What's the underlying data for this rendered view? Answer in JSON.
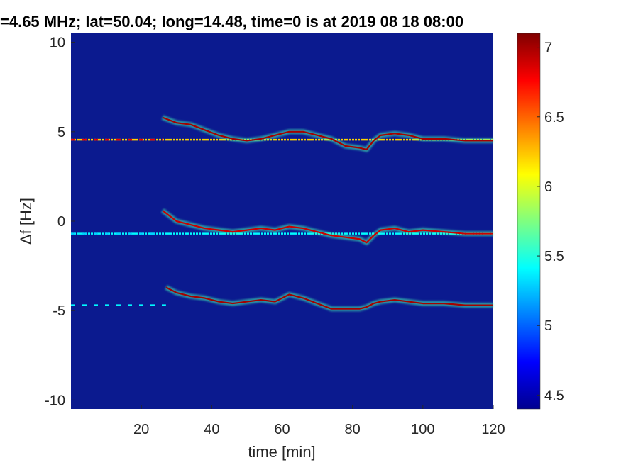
{
  "chart_data": {
    "type": "heatmap",
    "title": "=4.65 MHz;  lat=50.04; long=14.48, time=0 is at 2019 08 18 08:00",
    "xlabel": "time [min]",
    "ylabel": "Δf [Hz]",
    "xlim": [
      0,
      120
    ],
    "ylim": [
      -10.5,
      10.5
    ],
    "x_ticks": [
      20,
      40,
      60,
      80,
      100,
      120
    ],
    "x_tick_labels": [
      "20",
      "40",
      "60",
      "80",
      "100",
      "120"
    ],
    "y_ticks": [
      10,
      5,
      0,
      -5,
      -10
    ],
    "y_tick_labels": [
      "10",
      "5",
      "0",
      "-5",
      "-10"
    ],
    "colorbar": {
      "limits": [
        4.4,
        7.1
      ],
      "ticks": [
        7,
        6.5,
        6,
        5.5,
        5,
        4.5
      ],
      "tick_labels": [
        "7",
        "6.5",
        "6",
        "5.5",
        "5",
        "4.5"
      ],
      "colormap": "jet"
    },
    "background_color": "#0b1a8f",
    "series": [
      {
        "constant_line": {
          "x": [
            0,
            120
          ],
          "y": [
            4.55,
            4.55
          ],
          "intensity": 6.2
        },
        "doppler_trace": {
          "x": [
            26,
            30,
            34,
            38,
            42,
            46,
            50,
            54,
            58,
            62,
            66,
            70,
            74,
            78,
            82,
            84,
            86,
            88,
            92,
            96,
            100,
            106,
            112,
            118,
            120
          ],
          "y": [
            5.8,
            5.5,
            5.4,
            5.1,
            4.8,
            4.6,
            4.5,
            4.6,
            4.8,
            5.0,
            5.0,
            4.8,
            4.6,
            4.2,
            4.1,
            4.0,
            4.5,
            4.8,
            4.9,
            4.8,
            4.6,
            4.6,
            4.5,
            4.5,
            4.5
          ],
          "intensity": 7.0
        },
        "sporadic": {
          "x": [
            0,
            26
          ],
          "y": [
            4.55,
            4.55
          ],
          "intensity": 6.8
        }
      },
      {
        "constant_line": {
          "x": [
            0,
            120
          ],
          "y": [
            -0.7,
            -0.7
          ],
          "intensity": 5.4
        },
        "doppler_trace": {
          "x": [
            26,
            30,
            34,
            38,
            42,
            46,
            50,
            54,
            58,
            62,
            66,
            70,
            74,
            78,
            82,
            84,
            86,
            88,
            92,
            96,
            100,
            106,
            112,
            118,
            120
          ],
          "y": [
            0.6,
            0.0,
            -0.2,
            -0.4,
            -0.5,
            -0.6,
            -0.5,
            -0.4,
            -0.5,
            -0.3,
            -0.4,
            -0.6,
            -0.8,
            -0.9,
            -1.0,
            -1.2,
            -0.8,
            -0.5,
            -0.4,
            -0.6,
            -0.5,
            -0.6,
            -0.7,
            -0.7,
            -0.7
          ],
          "intensity": 6.9
        },
        "sporadic": {
          "x": [
            0,
            26
          ],
          "y": [
            -0.7,
            -0.7
          ],
          "intensity": 5.3
        }
      },
      {
        "doppler_trace": {
          "x": [
            27,
            30,
            34,
            38,
            42,
            46,
            50,
            54,
            58,
            62,
            66,
            70,
            74,
            78,
            82,
            84,
            86,
            88,
            92,
            96,
            100,
            106,
            112,
            118,
            120
          ],
          "y": [
            -3.7,
            -4.0,
            -4.2,
            -4.3,
            -4.5,
            -4.6,
            -4.5,
            -4.4,
            -4.5,
            -4.1,
            -4.3,
            -4.6,
            -4.9,
            -4.9,
            -4.9,
            -4.8,
            -4.6,
            -4.5,
            -4.4,
            -4.5,
            -4.6,
            -4.6,
            -4.7,
            -4.7,
            -4.7
          ],
          "intensity": 7.0
        },
        "sporadic": {
          "x": [
            0,
            27
          ],
          "y": [
            -4.7,
            -4.7
          ],
          "intensity": 5.4
        }
      }
    ]
  }
}
